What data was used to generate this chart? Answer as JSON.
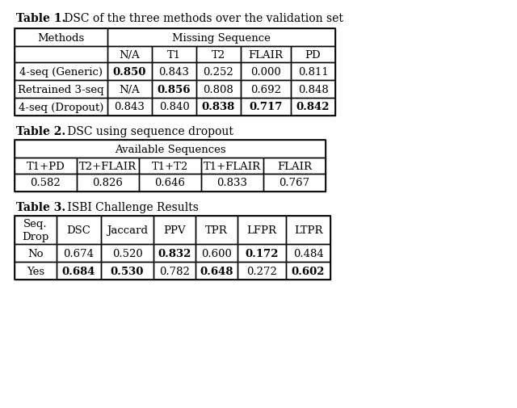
{
  "title1": "Table 1.",
  "title1_rest": " DSC of the three methods over the validation set",
  "title2": "Table 2.",
  "title2_rest": " DSC using sequence dropout",
  "title3": "Table 3.",
  "title3_rest": " ISBI Challenge Results",
  "table1_header1": "Methods",
  "table1_header2": "Missing Sequence",
  "table1_subheaders": [
    "N/A",
    "T1",
    "T2",
    "FLAIR",
    "PD"
  ],
  "table1_rows": [
    [
      "4-seq (Generic)",
      "0.850",
      "0.843",
      "0.252",
      "0.000",
      "0.811"
    ],
    [
      "Retrained 3-seq",
      "N/A",
      "0.856",
      "0.808",
      "0.692",
      "0.848"
    ],
    [
      "4-seq (Dropout)",
      "0.843",
      "0.840",
      "0.838",
      "0.717",
      "0.842"
    ]
  ],
  "table1_bold": [
    [
      false,
      true,
      false,
      false,
      false,
      false
    ],
    [
      false,
      false,
      true,
      false,
      false,
      false
    ],
    [
      false,
      false,
      false,
      true,
      true,
      true
    ]
  ],
  "table2_header": "Available Sequences",
  "table2_cols": [
    "T1+PD",
    "T2+FLAIR",
    "T1+T2",
    "T1+FLAIR",
    "FLAIR"
  ],
  "table2_vals": [
    "0.582",
    "0.826",
    "0.646",
    "0.833",
    "0.767"
  ],
  "table3_cols": [
    "Seq.\nDrop",
    "DSC",
    "Jaccard",
    "PPV",
    "TPR",
    "LFPR",
    "LTPR"
  ],
  "table3_rows": [
    [
      "No",
      "0.674",
      "0.520",
      "0.832",
      "0.600",
      "0.172",
      "0.484"
    ],
    [
      "Yes",
      "0.684",
      "0.530",
      "0.782",
      "0.648",
      "0.272",
      "0.602"
    ]
  ],
  "table3_bold": [
    [
      false,
      false,
      false,
      true,
      false,
      true,
      false
    ],
    [
      false,
      true,
      true,
      false,
      true,
      false,
      true
    ]
  ],
  "bg_color": "#ffffff",
  "text_color": "#000000",
  "line_color": "#000000"
}
